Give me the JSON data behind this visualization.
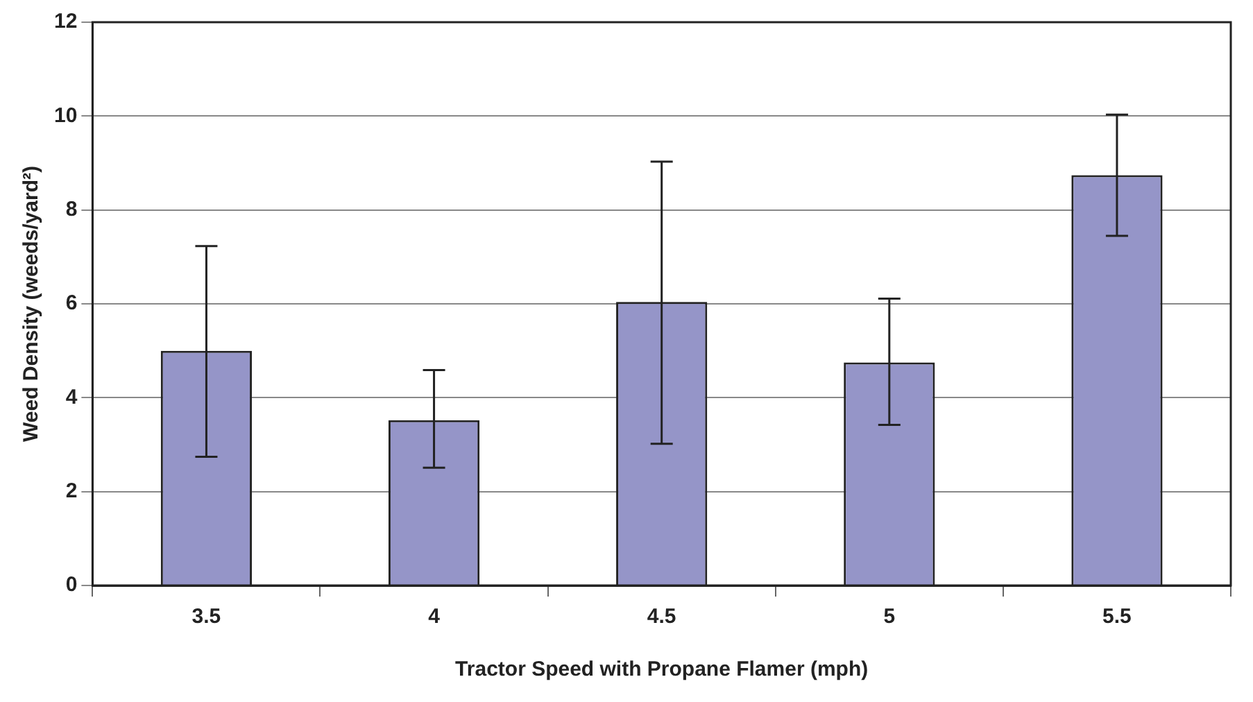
{
  "chart_data": {
    "type": "bar",
    "xlabel": "Tractor Speed with Propane Flamer (mph)",
    "ylabel": "Weed Density (weeds/yard²)",
    "categories": [
      "3.5",
      "4",
      "4.5",
      "5",
      "5.5"
    ],
    "values": [
      5.0,
      3.52,
      6.04,
      4.75,
      8.74
    ],
    "errors": [
      [
        2.74,
        7.23
      ],
      [
        2.51,
        4.59
      ],
      [
        3.02,
        9.03
      ],
      [
        3.42,
        6.11
      ],
      [
        7.45,
        10.03
      ]
    ],
    "color": "#9595c8",
    "ylim": [
      0,
      12
    ],
    "yticks": [
      0,
      2,
      4,
      6,
      8,
      10,
      12
    ],
    "grid": "y",
    "legend": false
  }
}
